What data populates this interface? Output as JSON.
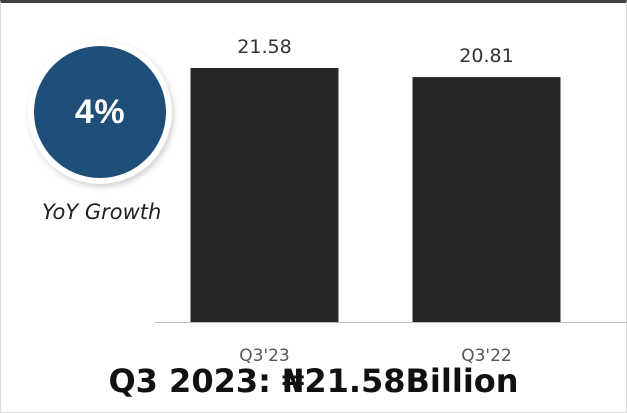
{
  "badge": {
    "value": "4%",
    "label": "YoY Growth",
    "color": "#1f4e79"
  },
  "footer": {
    "title": "Q3 2023: ₦21.58Billion"
  },
  "chart_data": {
    "type": "bar",
    "categories": [
      "Q3'23",
      "Q3'22"
    ],
    "values": [
      21.58,
      20.81
    ],
    "value_labels": [
      "21.58",
      "20.81"
    ],
    "title": "",
    "xlabel": "",
    "ylabel": "",
    "ylim": [
      0,
      21.58
    ],
    "bar_color": "#262626",
    "grid": false,
    "legend": "none"
  }
}
